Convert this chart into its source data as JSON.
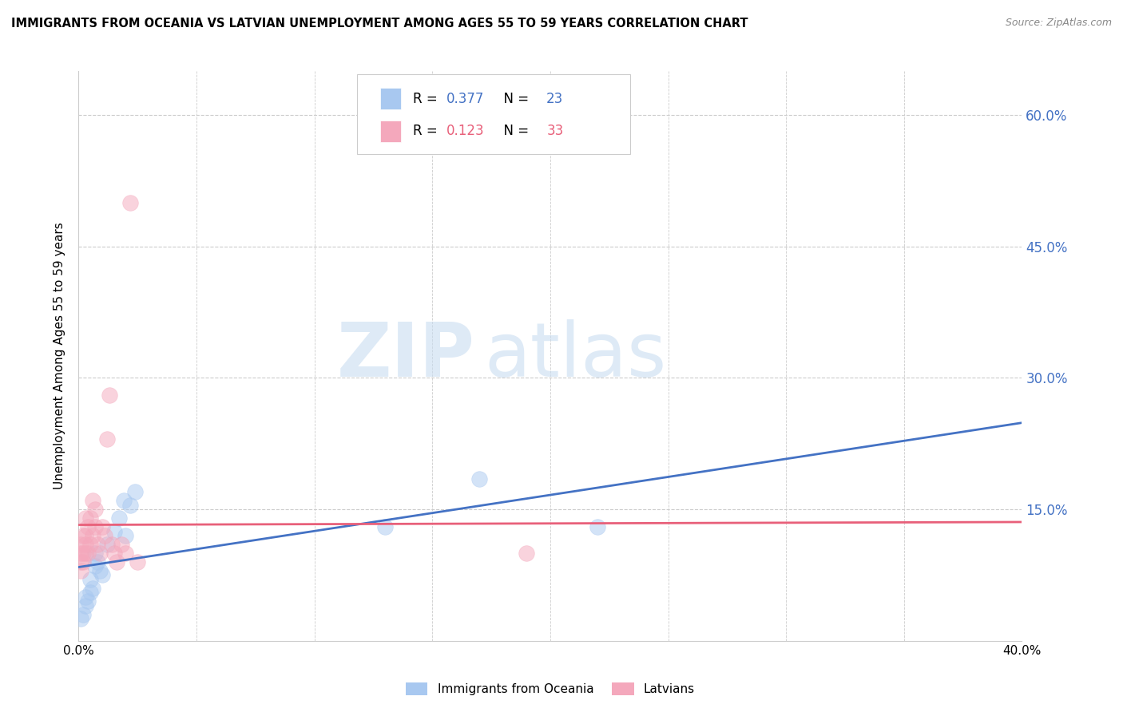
{
  "title": "IMMIGRANTS FROM OCEANIA VS LATVIAN UNEMPLOYMENT AMONG AGES 55 TO 59 YEARS CORRELATION CHART",
  "source": "Source: ZipAtlas.com",
  "ylabel": "Unemployment Among Ages 55 to 59 years",
  "xlim": [
    0.0,
    0.4
  ],
  "ylim": [
    0.0,
    0.65
  ],
  "yticks": [
    0.0,
    0.15,
    0.3,
    0.45,
    0.6
  ],
  "ytick_labels": [
    "",
    "15.0%",
    "30.0%",
    "45.0%",
    "60.0%"
  ],
  "xticks": [
    0.0,
    0.05,
    0.1,
    0.15,
    0.2,
    0.25,
    0.3,
    0.35,
    0.4
  ],
  "xtick_labels": [
    "0.0%",
    "",
    "",
    "",
    "",
    "",
    "",
    "",
    "40.0%"
  ],
  "blue_scatter_x": [
    0.001,
    0.002,
    0.003,
    0.003,
    0.004,
    0.005,
    0.005,
    0.006,
    0.007,
    0.007,
    0.008,
    0.009,
    0.01,
    0.012,
    0.015,
    0.017,
    0.019,
    0.02,
    0.022,
    0.024,
    0.13,
    0.17,
    0.22
  ],
  "blue_scatter_y": [
    0.025,
    0.03,
    0.04,
    0.05,
    0.045,
    0.055,
    0.07,
    0.06,
    0.085,
    0.1,
    0.09,
    0.08,
    0.075,
    0.11,
    0.125,
    0.14,
    0.16,
    0.12,
    0.155,
    0.17,
    0.13,
    0.185,
    0.13
  ],
  "pink_scatter_x": [
    0.001,
    0.001,
    0.001,
    0.001,
    0.002,
    0.002,
    0.002,
    0.003,
    0.003,
    0.003,
    0.003,
    0.004,
    0.004,
    0.005,
    0.005,
    0.006,
    0.006,
    0.007,
    0.007,
    0.008,
    0.009,
    0.01,
    0.011,
    0.012,
    0.013,
    0.014,
    0.015,
    0.016,
    0.018,
    0.02,
    0.022,
    0.025,
    0.19
  ],
  "pink_scatter_y": [
    0.08,
    0.09,
    0.1,
    0.11,
    0.09,
    0.1,
    0.12,
    0.1,
    0.11,
    0.12,
    0.14,
    0.1,
    0.13,
    0.11,
    0.14,
    0.12,
    0.16,
    0.13,
    0.15,
    0.11,
    0.1,
    0.13,
    0.12,
    0.23,
    0.28,
    0.11,
    0.1,
    0.09,
    0.11,
    0.1,
    0.5,
    0.09,
    0.1
  ],
  "blue_R": 0.377,
  "blue_N": 23,
  "pink_R": 0.123,
  "pink_N": 33,
  "blue_color": "#A8C8F0",
  "pink_color": "#F4A8BC",
  "blue_line_color": "#4472C4",
  "pink_line_color": "#E8607A",
  "blue_trendline_style": "solid",
  "pink_trendline_style": "solid",
  "scatter_size": 200,
  "scatter_alpha": 0.5,
  "grid_color": "#CCCCCC",
  "watermark_zip": "ZIP",
  "watermark_atlas": "atlas",
  "background_color": "#FFFFFF",
  "legend_series": [
    "Immigrants from Oceania",
    "Latvians"
  ]
}
